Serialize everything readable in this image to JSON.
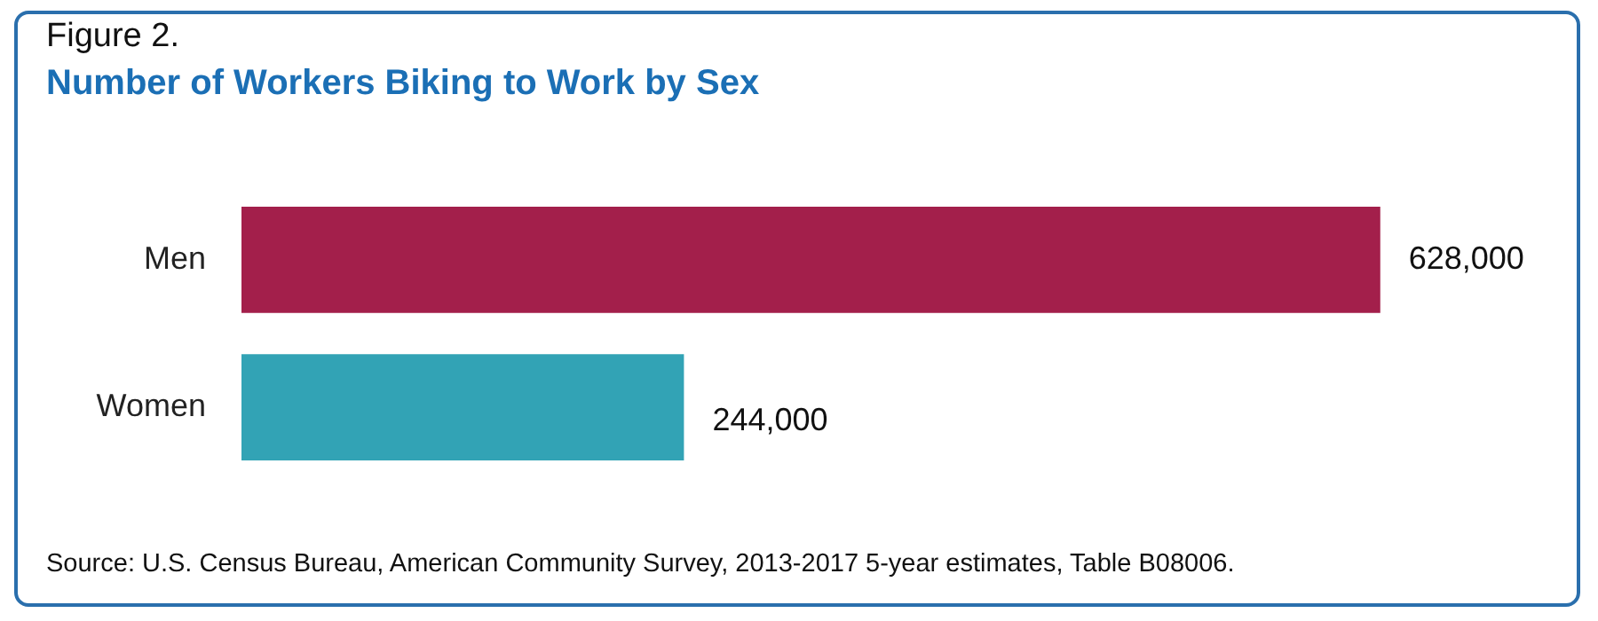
{
  "chart_data": {
    "type": "bar",
    "orientation": "horizontal",
    "subtitle": "Figure 2.",
    "title": "Number of Workers Biking to Work by Sex",
    "categories": [
      "Men",
      "Women"
    ],
    "values": [
      628000,
      244000
    ],
    "colors": [
      "#a31f4b",
      "#32a3b5"
    ],
    "value_labels": [
      "628,000",
      "244,000"
    ],
    "legend": false,
    "tick_labels": "y",
    "annotations": [
      "Source: U.S. Census Bureau, American Community Survey, 2013-2017 5-year estimates, Table B08006."
    ]
  }
}
